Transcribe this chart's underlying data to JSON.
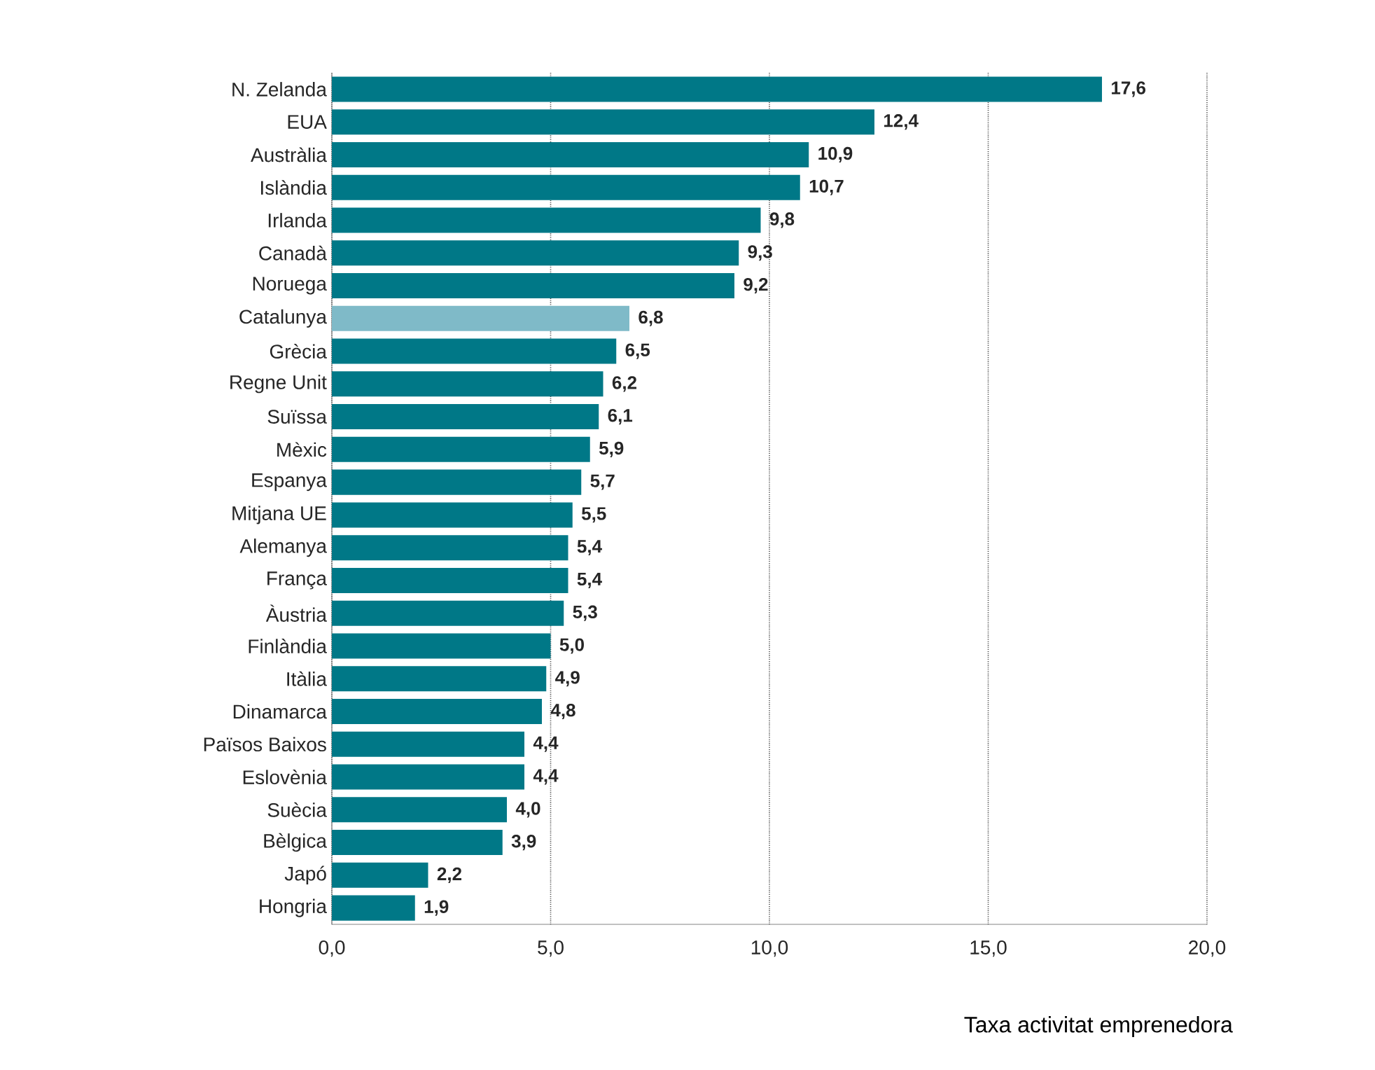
{
  "chart_data": {
    "type": "bar",
    "orientation": "horizontal",
    "xlabel": "Taxa activitat emprenedora",
    "categories": [
      "N. Zelanda",
      "EUA",
      "Austràlia",
      "Islàndia",
      "Irlanda",
      "Canadà",
      "Noruega",
      "Catalunya",
      "Grècia",
      "Regne Unit",
      "Suïssa",
      "Mèxic",
      "Espanya",
      "Mitjana UE",
      "Alemanya",
      "França",
      "Àustria",
      "Finlàndia",
      "Itàlia",
      "Dinamarca",
      "Països Baixos",
      "Eslovènia",
      "Suècia",
      "Bèlgica",
      "Japó",
      "Hongria"
    ],
    "values": [
      17.6,
      12.4,
      10.9,
      10.7,
      9.8,
      9.3,
      9.2,
      6.8,
      6.5,
      6.2,
      6.1,
      5.9,
      5.7,
      5.5,
      5.4,
      5.4,
      5.3,
      5.0,
      4.9,
      4.8,
      4.4,
      4.4,
      4.0,
      3.9,
      2.2,
      1.9
    ],
    "value_labels": [
      "17,6",
      "12,4",
      "10,9",
      "10,7",
      "9,8",
      "9,3",
      "9,2",
      "6,8",
      "6,5",
      "6,2",
      "6,1",
      "5,9",
      "5,7",
      "5,5",
      "5,4",
      "5,4",
      "5,3",
      "5,0",
      "4,9",
      "4,8",
      "4,4",
      "4,4",
      "4,0",
      "3,9",
      "2,2",
      "1,9"
    ],
    "colors": [
      "#007887",
      "#007887",
      "#007887",
      "#007887",
      "#007887",
      "#007887",
      "#007887",
      "#7fbac8",
      "#007887",
      "#007887",
      "#007887",
      "#007887",
      "#007887",
      "#007887",
      "#007887",
      "#007887",
      "#007887",
      "#007887",
      "#007887",
      "#007887",
      "#007887",
      "#007887",
      "#007887",
      "#007887",
      "#007887",
      "#007887"
    ],
    "xlim": [
      0,
      20
    ],
    "xticks": [
      {
        "value": 0,
        "label": "0,0"
      },
      {
        "value": 5,
        "label": "5,0"
      },
      {
        "value": 10,
        "label": "10,0"
      },
      {
        "value": 15,
        "label": "15,0"
      },
      {
        "value": 20,
        "label": "20,0"
      }
    ],
    "grid": "x"
  }
}
